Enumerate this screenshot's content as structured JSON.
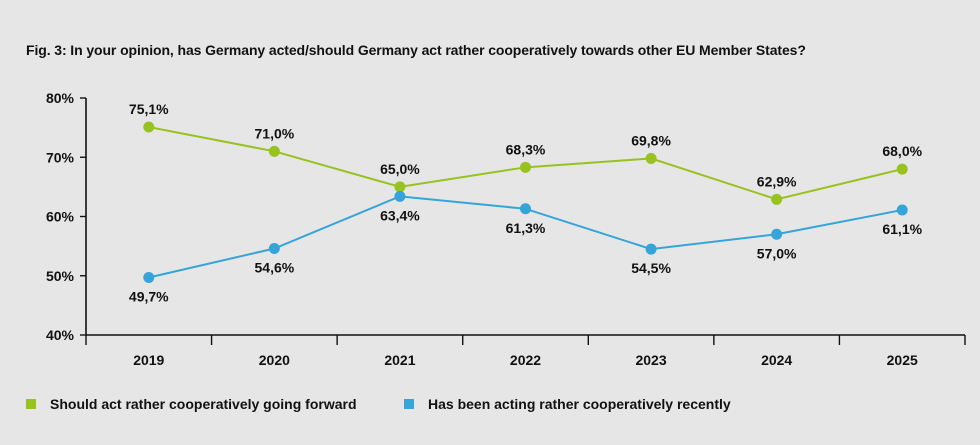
{
  "chart_data": {
    "type": "line",
    "title": "Fig. 3: In your opinion, has Germany acted/should Germany act rather cooperatively towards other EU Member States?",
    "xlabel": "",
    "ylabel": "",
    "categories": [
      "2019",
      "2020",
      "2021",
      "2022",
      "2023",
      "2024",
      "2025"
    ],
    "ylim": [
      40,
      80
    ],
    "yticks": [
      40,
      50,
      60,
      70,
      80
    ],
    "ytick_labels": [
      "40%",
      "50%",
      "60%",
      "70%",
      "80%"
    ],
    "grid": false,
    "legend_position": "bottom-left",
    "series": [
      {
        "name": "Should act rather cooperatively going forward",
        "color": "#97c21f",
        "values": [
          75.1,
          71.0,
          65.0,
          68.3,
          69.8,
          62.9,
          68.0
        ],
        "labels": [
          "75,1%",
          "71,0%",
          "65,0%",
          "68,3%",
          "69,8%",
          "62,9%",
          "68,0%"
        ],
        "label_positions": [
          "above",
          "above",
          "above",
          "above",
          "above",
          "above",
          "above"
        ]
      },
      {
        "name": "Has been acting rather cooperatively recently",
        "color": "#35a4d9",
        "values": [
          49.7,
          54.6,
          63.4,
          61.3,
          54.5,
          57.0,
          61.1
        ],
        "labels": [
          "49,7%",
          "54,6%",
          "63,4%",
          "61,3%",
          "54,5%",
          "57,0%",
          "61,1%"
        ],
        "label_positions": [
          "below",
          "below",
          "below",
          "below",
          "below",
          "below",
          "below"
        ]
      }
    ]
  }
}
